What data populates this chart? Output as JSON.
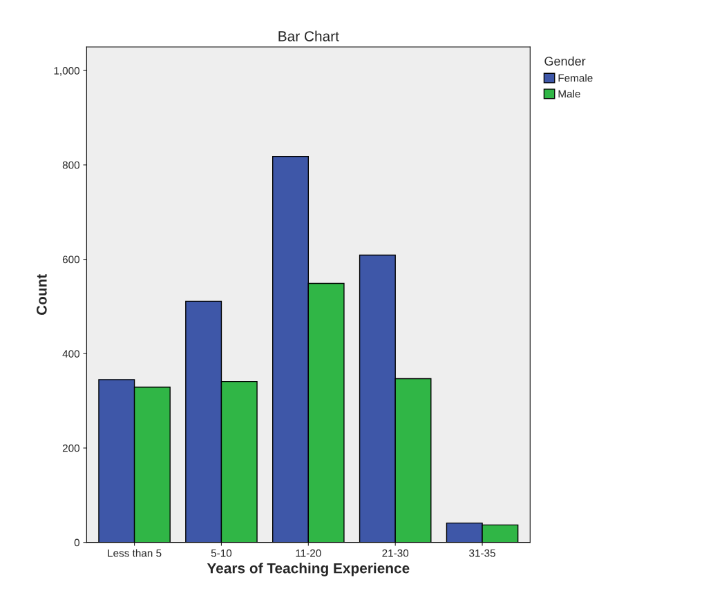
{
  "chart_data": {
    "type": "bar",
    "title": "Bar Chart",
    "xlabel": "Years of Teaching Experience",
    "ylabel": "Count",
    "legend_title": "Gender",
    "categories": [
      "Less than 5",
      "5-10",
      "11-20",
      "21-30",
      "31-35"
    ],
    "series": [
      {
        "name": "Female",
        "color": "#3e57a8",
        "values": [
          345,
          511,
          818,
          609,
          41
        ]
      },
      {
        "name": "Male",
        "color": "#30b646",
        "values": [
          329,
          341,
          549,
          347,
          37
        ]
      }
    ],
    "ylim": [
      0,
      1050
    ],
    "yticks": [
      {
        "value": 0,
        "label": "0"
      },
      {
        "value": 200,
        "label": "200"
      },
      {
        "value": 400,
        "label": "400"
      },
      {
        "value": 600,
        "label": "600"
      },
      {
        "value": 800,
        "label": "800"
      },
      {
        "value": 1000,
        "label": "1,000"
      }
    ],
    "grid": false,
    "legend": "right"
  }
}
